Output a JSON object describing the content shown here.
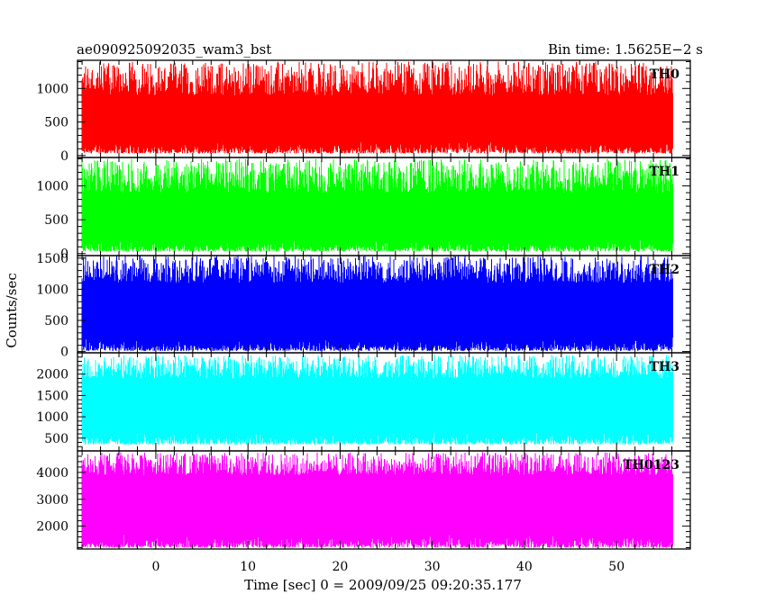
{
  "header": {
    "left_title": "ae090925092035_wam3_bst",
    "right_title": "Bin time: 1.5625E−2 s"
  },
  "chart_data": [
    {
      "type": "line",
      "name": "TH0",
      "color": "#ff0000",
      "xlim": [
        -8.5,
        58
      ],
      "ylim": [
        -30,
        1420
      ],
      "yticks": [
        0,
        500,
        1000
      ],
      "signal": {
        "t_start": -8,
        "t_end": 56,
        "bin": 0.015625,
        "mean": 600,
        "low_envelope": [
          30,
          250
        ],
        "high_envelope": [
          900,
          1400
        ]
      }
    },
    {
      "type": "line",
      "name": "TH1",
      "color": "#00ff00",
      "xlim": [
        -8.5,
        58
      ],
      "ylim": [
        -30,
        1420
      ],
      "yticks": [
        0,
        500,
        1000
      ],
      "signal": {
        "t_start": -8,
        "t_end": 56,
        "bin": 0.015625,
        "mean": 600,
        "low_envelope": [
          30,
          250
        ],
        "high_envelope": [
          900,
          1400
        ]
      }
    },
    {
      "type": "line",
      "name": "TH2",
      "color": "#0000ff",
      "xlim": [
        -8.5,
        58
      ],
      "ylim": [
        -20,
        1540
      ],
      "yticks": [
        0,
        500,
        1000,
        1500
      ],
      "signal": {
        "t_start": -8,
        "t_end": 56,
        "bin": 0.015625,
        "mean": 700,
        "low_envelope": [
          10,
          250
        ],
        "high_envelope": [
          1100,
          1540
        ]
      }
    },
    {
      "type": "line",
      "name": "TH3",
      "color": "#00ffff",
      "xlim": [
        -8.5,
        58
      ],
      "ylim": [
        200,
        2500
      ],
      "yticks": [
        500,
        1000,
        1500,
        2000
      ],
      "signal": {
        "t_start": -8,
        "t_end": 56,
        "bin": 0.015625,
        "mean": 1400,
        "low_envelope": [
          350,
          700
        ],
        "high_envelope": [
          1900,
          2450
        ]
      }
    },
    {
      "type": "line",
      "name": "TH0123",
      "color": "#ff00ff",
      "xlim": [
        -8.5,
        58
      ],
      "ylim": [
        1150,
        4800
      ],
      "yticks": [
        2000,
        3000,
        4000
      ],
      "signal": {
        "t_start": -8,
        "t_end": 56,
        "bin": 0.015625,
        "mean": 2900,
        "low_envelope": [
          1200,
          1800
        ],
        "high_envelope": [
          3900,
          4750
        ]
      }
    }
  ],
  "xaxis": {
    "label": "Time [sec] 0 = 2009/09/25 09:20:35.177",
    "ticks": [
      0,
      10,
      20,
      30,
      40,
      50
    ],
    "minor_step": 2
  },
  "yaxis": {
    "label": "Counts/sec"
  }
}
